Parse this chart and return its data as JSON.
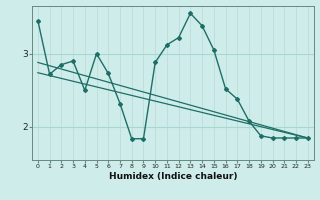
{
  "xlabel": "Humidex (Indice chaleur)",
  "bg_color": "#ceecea",
  "line_color": "#1e6e66",
  "grid_color": "#a8d8d4",
  "vgrid_color": "#c0dcd8",
  "xlim": [
    -0.5,
    23.5
  ],
  "ylim": [
    1.55,
    3.65
  ],
  "yticks": [
    2,
    3
  ],
  "xticks": [
    0,
    1,
    2,
    3,
    4,
    5,
    6,
    7,
    8,
    9,
    10,
    11,
    12,
    13,
    14,
    15,
    16,
    17,
    18,
    19,
    20,
    21,
    22,
    23
  ],
  "series_main": {
    "x": [
      0,
      1,
      2,
      3,
      4,
      5,
      6,
      7,
      8,
      9,
      10,
      11,
      12,
      13,
      14,
      15,
      16,
      17,
      18,
      19,
      20,
      21,
      22,
      23
    ],
    "y": [
      3.45,
      2.72,
      2.85,
      2.9,
      2.5,
      3.0,
      2.73,
      2.32,
      1.84,
      1.84,
      2.88,
      3.12,
      3.22,
      3.55,
      3.38,
      3.05,
      2.52,
      2.38,
      2.08,
      1.88,
      1.85,
      1.85,
      1.85,
      1.85
    ]
  },
  "series_trend1": {
    "x": [
      0,
      23
    ],
    "y": [
      2.88,
      1.85
    ]
  },
  "series_trend2": {
    "x": [
      0,
      23
    ],
    "y": [
      2.74,
      1.85
    ]
  }
}
